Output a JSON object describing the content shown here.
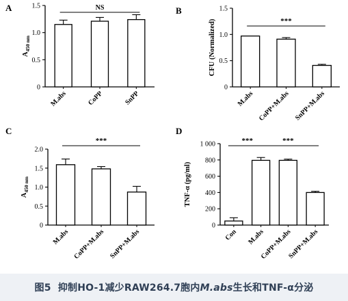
{
  "figure": {
    "caption": {
      "prefix": "图5",
      "text_before": "抑制HO-1减少RAW264.7胞内",
      "italic": "M.abs",
      "text_after": "生长和TNF-α分泌"
    }
  },
  "colors": {
    "axis": "#000000",
    "bar_fill": "#ffffff",
    "caption_bg": "#eef1f5",
    "caption_text": "#2f3f55"
  },
  "chart_data": [
    {
      "panel": "A",
      "type": "bar",
      "categories": [
        "M.abs",
        "CoPP",
        "SnPP"
      ],
      "values": [
        1.15,
        1.21,
        1.24
      ],
      "errors": [
        0.08,
        0.07,
        0.09
      ],
      "ylabel": "A450 nm",
      "ylim": [
        0,
        1.5
      ],
      "yticks": [
        "0",
        "0.5",
        "1.0",
        "1.5"
      ],
      "significance": [
        {
          "from": 0,
          "to": 2,
          "label": "NS"
        }
      ]
    },
    {
      "panel": "B",
      "type": "bar",
      "categories": [
        "M.abs",
        "CoPP+M.abs",
        "SnPP+M.abs"
      ],
      "values": [
        0.97,
        0.91,
        0.41
      ],
      "errors": [
        0.0,
        0.03,
        0.02
      ],
      "ylabel": "CFU (Normalized)",
      "ylim": [
        0,
        1.5
      ],
      "yticks": [
        "0",
        "0.5",
        "1.0",
        "1.5"
      ],
      "significance": [
        {
          "from": 0,
          "to": 2,
          "label": "***"
        }
      ]
    },
    {
      "panel": "C",
      "type": "bar",
      "categories": [
        "M.abs",
        "CoPP+M.abs",
        "SnPP+M.abs"
      ],
      "values": [
        1.59,
        1.48,
        0.87
      ],
      "errors": [
        0.15,
        0.06,
        0.15
      ],
      "ylabel": "A450 nm",
      "ylim": [
        0,
        2.0
      ],
      "yticks": [
        "0",
        "0.5",
        "1.0",
        "1.5",
        "2.0"
      ],
      "significance": [
        {
          "from": 0,
          "to": 2,
          "label": "***"
        }
      ]
    },
    {
      "panel": "D",
      "type": "bar",
      "categories": [
        "Con",
        "M.abs",
        "CoPP+M.abs",
        "SnPP+M.abs"
      ],
      "values": [
        50,
        795,
        795,
        400
      ],
      "errors": [
        40,
        35,
        15,
        15
      ],
      "ylabel": "TNF-α (pg/ml)",
      "ylim": [
        0,
        1000
      ],
      "yticks": [
        "0",
        "200",
        "400",
        "600",
        "800",
        "1 000"
      ],
      "significance": [
        {
          "from": 0,
          "to": 1,
          "label": "***"
        },
        {
          "from": 1,
          "to": 3,
          "label": "***"
        }
      ]
    }
  ]
}
